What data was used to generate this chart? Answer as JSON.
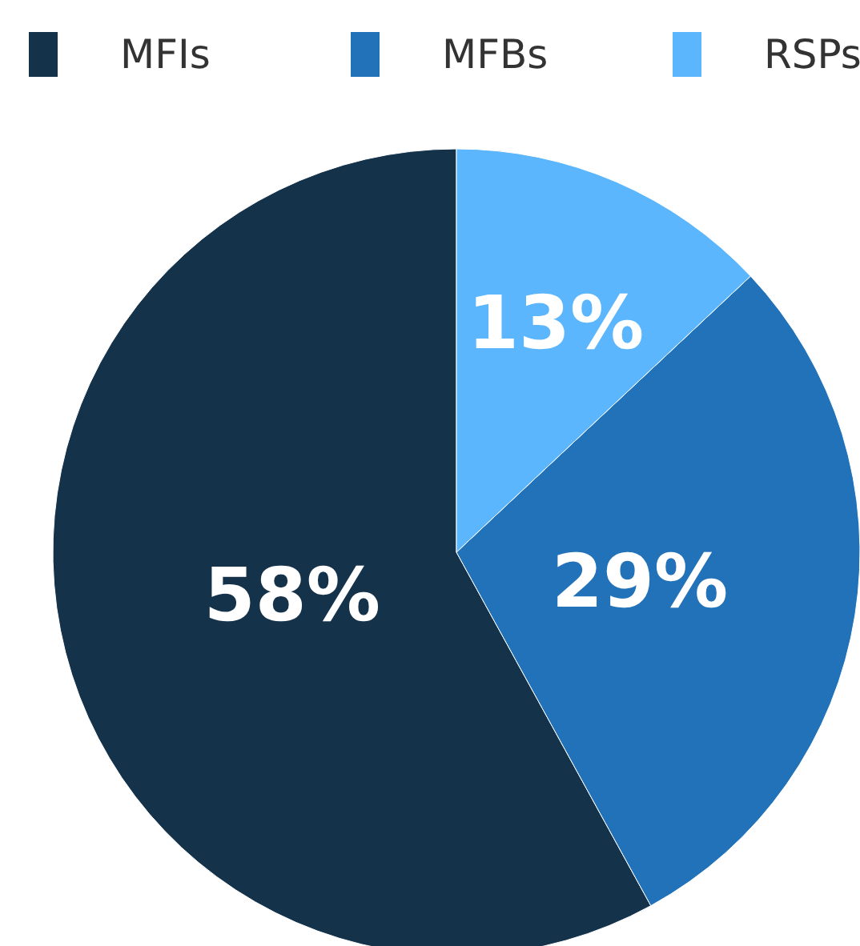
{
  "chart_data": {
    "type": "pie",
    "categories": [
      "MFIs",
      "MFBs",
      "RSPs"
    ],
    "values": [
      58,
      29,
      13
    ],
    "colors": [
      "#15324b",
      "#2272b9",
      "#5bb6fd"
    ],
    "value_labels": [
      "58%",
      "29%",
      "13%"
    ],
    "legend": "top"
  }
}
